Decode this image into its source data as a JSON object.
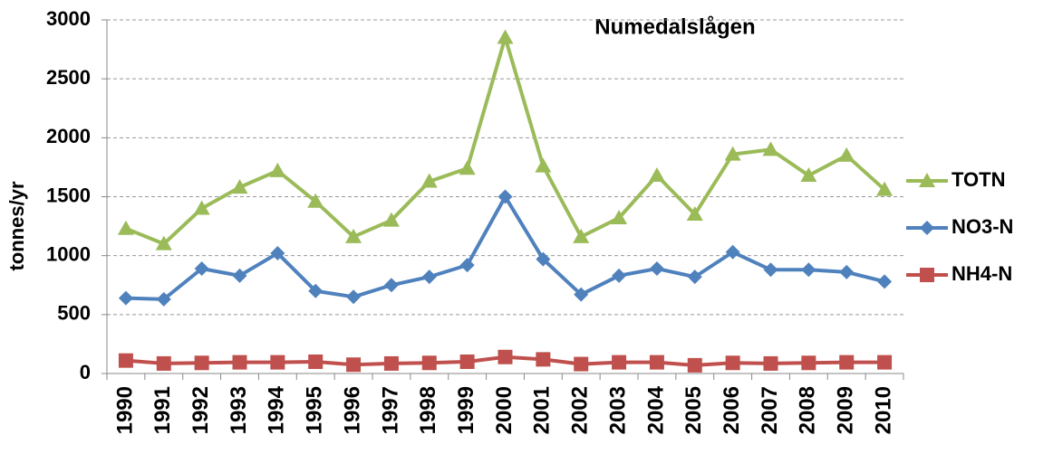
{
  "chart_data": {
    "type": "line",
    "title": "Numedalslågen",
    "y_label": "tonnes/yr",
    "categories": [
      "1990",
      "1991",
      "1992",
      "1993",
      "1994",
      "1995",
      "1996",
      "1997",
      "1998",
      "1999",
      "2000",
      "2001",
      "2002",
      "2003",
      "2004",
      "2005",
      "2006",
      "2007",
      "2008",
      "2009",
      "2010"
    ],
    "series": [
      {
        "name": "TOTN",
        "color": "#9bbb59",
        "marker": "triangle",
        "values": [
          1230,
          1100,
          1400,
          1580,
          1720,
          1460,
          1160,
          1300,
          1630,
          1740,
          2850,
          1760,
          1160,
          1320,
          1680,
          1350,
          1860,
          1900,
          1680,
          1850,
          1560
        ]
      },
      {
        "name": "NO3-N",
        "color": "#4f81bd",
        "marker": "diamond",
        "values": [
          640,
          630,
          890,
          830,
          1020,
          700,
          650,
          750,
          820,
          920,
          1500,
          970,
          670,
          830,
          890,
          820,
          1030,
          880,
          880,
          860,
          780
        ]
      },
      {
        "name": "NH4-N",
        "color": "#c0504d",
        "marker": "square",
        "values": [
          110,
          85,
          90,
          95,
          95,
          100,
          75,
          85,
          90,
          100,
          140,
          120,
          80,
          95,
          95,
          70,
          90,
          85,
          90,
          95,
          95
        ]
      }
    ],
    "ylim": [
      0,
      3000
    ],
    "yticks": [
      0,
      500,
      1000,
      1500,
      2000,
      2500,
      3000
    ],
    "grid": true,
    "legend": "right"
  }
}
